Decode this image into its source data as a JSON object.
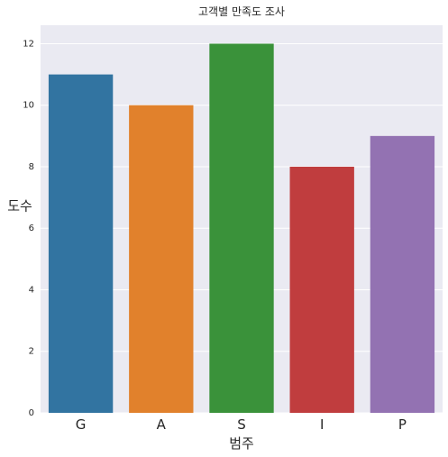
{
  "chart_data": {
    "type": "bar",
    "title": "고객별 만족도 조사",
    "xlabel": "범주",
    "ylabel": "도수",
    "categories": [
      "G",
      "A",
      "S",
      "I",
      "P"
    ],
    "values": [
      11,
      10,
      12,
      8,
      9
    ],
    "colors": [
      "#3274a1",
      "#e1812c",
      "#3a923a",
      "#c03d3e",
      "#9372b2"
    ],
    "ylim": [
      0,
      12.6
    ],
    "yticks": [
      0,
      2,
      4,
      6,
      8,
      10,
      12
    ],
    "grid": true,
    "background": "#eaeaf2"
  }
}
